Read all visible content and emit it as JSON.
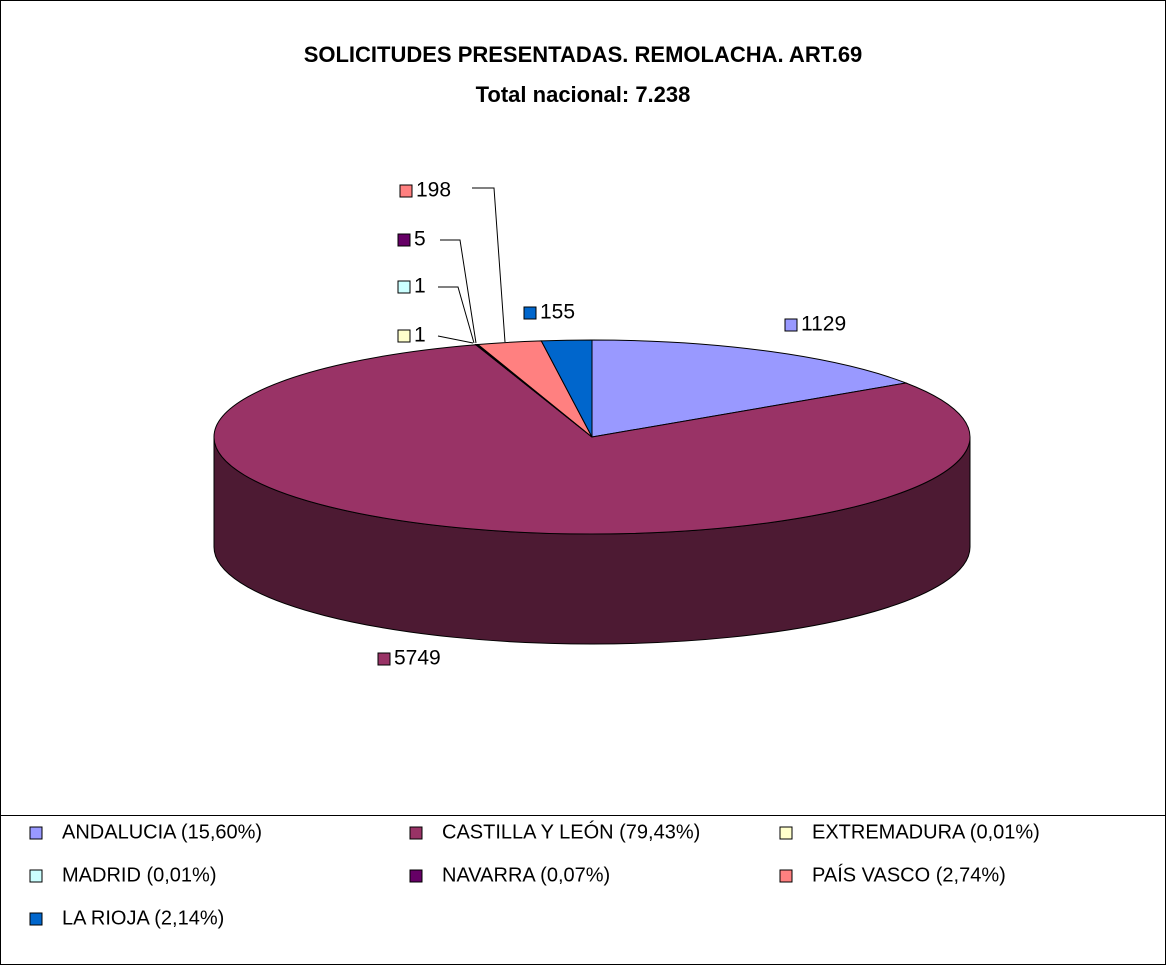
{
  "chart_data": {
    "type": "pie",
    "title": "SOLICITUDES PRESENTADAS. REMOLACHA. ART.69",
    "subtitle": "Total nacional: 7.238",
    "categories": [
      "ANDALUCIA (15,60%)",
      "CASTILLA Y LEÓN (79,43%)",
      "EXTREMADURA (0,01%)",
      "MADRID (0,01%)",
      "NAVARRA (0,07%)",
      "PAÍS VASCO (2,74%)",
      "LA RIOJA (2,14%)"
    ],
    "values": [
      1129,
      5749,
      1,
      1,
      5,
      198,
      155
    ],
    "colors": [
      "#9999ff",
      "#993366",
      "#ffffcc",
      "#ccffff",
      "#660066",
      "#ff8080",
      "#0066cc"
    ],
    "legend": "bottom"
  }
}
